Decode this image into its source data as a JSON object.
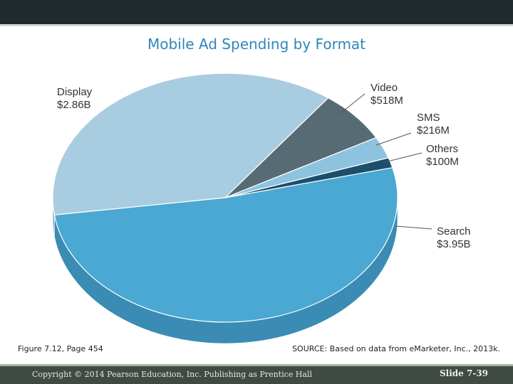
{
  "title": "Mobile Ad Spending by Format",
  "figure_caption": "Figure 7.12, Page 454",
  "source": "SOURCE: Based on data from eMarketer, Inc., 2013k.",
  "footer": {
    "copyright": "Copyright © 2014 Pearson Education, Inc. Publishing as Prentice Hall",
    "slide": "Slide 7-39"
  },
  "colors": {
    "banner": "#1f2a2c",
    "title": "#2e86b8",
    "footer_bar": "#3f4a45"
  },
  "chart_data": {
    "type": "pie",
    "title": "Mobile Ad Spending by Format",
    "style": "3d",
    "slices": [
      {
        "name": "Search",
        "value": 3.95,
        "value_label": "$3.95B",
        "color": "#4aa8d2",
        "side": "#3a8cb4"
      },
      {
        "name": "Display",
        "value": 2.86,
        "value_label": "$2.86B",
        "color": "#a9cde0",
        "side": "#8ab2c6"
      },
      {
        "name": "Video",
        "value": 0.518,
        "value_label": "$518M",
        "color": "#576b75",
        "side": "#45565e"
      },
      {
        "name": "SMS",
        "value": 0.216,
        "value_label": "$216M",
        "color": "#8ec3df",
        "side": "#74a7c2"
      },
      {
        "name": "Others",
        "value": 0.1,
        "value_label": "$100M",
        "color": "#1b4f6b",
        "side": "#143d53"
      }
    ]
  }
}
